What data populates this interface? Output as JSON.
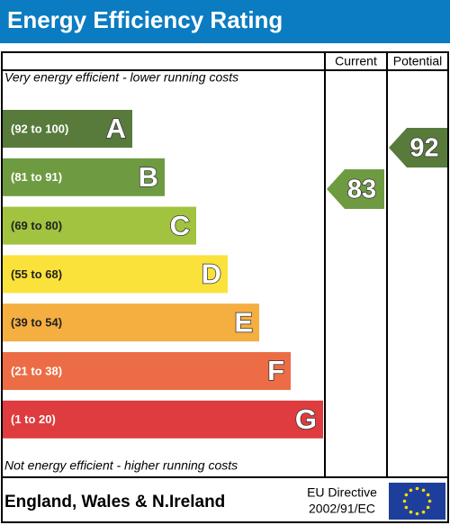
{
  "header": {
    "title": "Energy Efficiency Rating"
  },
  "columns": [
    "Current",
    "Potential"
  ],
  "top_note": "Very energy efficient - lower running costs",
  "bottom_note": "Not energy efficient - higher running costs",
  "bands": [
    {
      "range": "(92 to 100)",
      "letter": "A",
      "color": "#587b3c",
      "text_color": "#ffffff"
    },
    {
      "range": "(81 to 91)",
      "letter": "B",
      "color": "#6e9b41",
      "text_color": "#ffffff"
    },
    {
      "range": "(69 to 80)",
      "letter": "C",
      "color": "#a1c33f",
      "text_color": "#222222"
    },
    {
      "range": "(55 to 68)",
      "letter": "D",
      "color": "#fbe23a",
      "text_color": "#222222"
    },
    {
      "range": "(39 to 54)",
      "letter": "E",
      "color": "#f5ae40",
      "text_color": "#222222"
    },
    {
      "range": "(21 to 38)",
      "letter": "F",
      "color": "#ec6d45",
      "text_color": "#ffffff"
    },
    {
      "range": "(1 to 20)",
      "letter": "G",
      "color": "#de3c3e",
      "text_color": "#ffffff"
    }
  ],
  "current": 83,
  "potential": 92,
  "footer": {
    "region": "England, Wales & N.Ireland",
    "directive": [
      "EU Directive",
      "2002/91/EC"
    ]
  }
}
